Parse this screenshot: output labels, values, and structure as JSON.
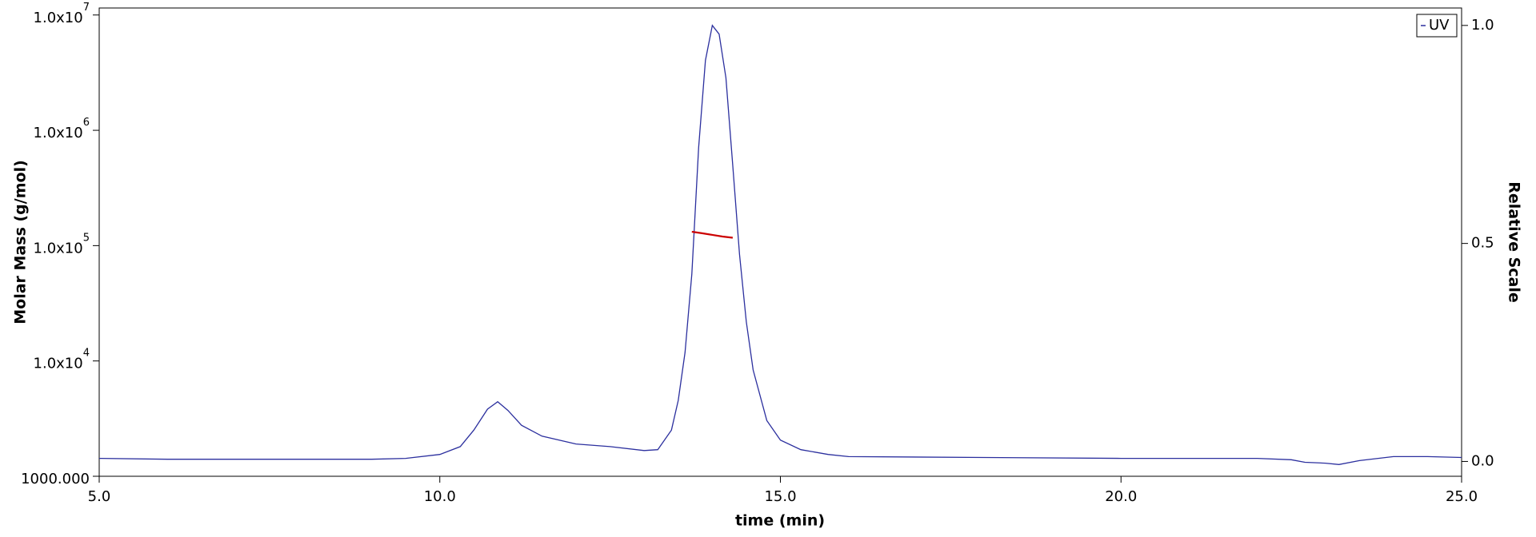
{
  "chart_data": {
    "type": "line",
    "xlabel": "time (min)",
    "ylabel": "Molar Mass (g/mol)",
    "y2label": "Relative Scale",
    "xlim": [
      5,
      25
    ],
    "xticks": [
      {
        "value": 5,
        "label": "5.0"
      },
      {
        "value": 10,
        "label": "10.0"
      },
      {
        "value": 15,
        "label": "15.0"
      },
      {
        "value": 20,
        "label": "20.0"
      },
      {
        "value": 25,
        "label": "25.0"
      }
    ],
    "ylim": [
      1000,
      11500000
    ],
    "yscale": "log",
    "yticks": [
      {
        "value": 1000,
        "label": "1000.000"
      },
      {
        "value": 10000,
        "label": "1.0x10",
        "exponent": "4"
      },
      {
        "value": 100000,
        "label": "1.0x10",
        "exponent": "5"
      },
      {
        "value": 1000000,
        "label": "1.0x10",
        "exponent": "6"
      },
      {
        "value": 10000000,
        "label": "1.0x10",
        "exponent": "7"
      }
    ],
    "y2lim": [
      -0.034,
      1.04
    ],
    "y2ticks": [
      {
        "value": 0,
        "label": "0.0"
      },
      {
        "value": 0.5,
        "label": "0.5"
      },
      {
        "value": 1,
        "label": "1.0"
      }
    ],
    "legend": "upper right",
    "series": [
      {
        "name": "UV",
        "color": "#2b2f9e",
        "axis": "y2",
        "x": [
          5,
          6,
          7,
          8,
          9,
          9.5,
          10,
          10.3,
          10.5,
          10.7,
          10.85,
          11,
          11.2,
          11.5,
          12,
          12.5,
          13,
          13.2,
          13.4,
          13.5,
          13.6,
          13.7,
          13.8,
          13.9,
          14,
          14.1,
          14.2,
          14.3,
          14.4,
          14.5,
          14.6,
          14.8,
          15,
          15.3,
          15.7,
          16,
          18,
          20,
          22,
          22.5,
          22.7,
          23,
          23.2,
          23.5,
          24,
          24.5,
          25
        ],
        "values": [
          0.007,
          0.005,
          0.005,
          0.005,
          0.005,
          0.007,
          0.016,
          0.034,
          0.072,
          0.12,
          0.137,
          0.117,
          0.083,
          0.058,
          0.04,
          0.034,
          0.025,
          0.027,
          0.072,
          0.14,
          0.25,
          0.43,
          0.72,
          0.92,
          1.0,
          0.98,
          0.88,
          0.68,
          0.475,
          0.32,
          0.21,
          0.094,
          0.049,
          0.027,
          0.016,
          0.011,
          0.009,
          0.007,
          0.007,
          0.004,
          -0.002,
          -0.004,
          -0.007,
          0.002,
          0.011,
          0.011,
          0.009
        ]
      },
      {
        "color": "#cc0000",
        "axis": "y",
        "x": [
          13.7,
          13.85,
          14.0,
          14.15,
          14.3
        ],
        "values": [
          132000,
          128000,
          124000,
          120000,
          117000
        ]
      }
    ]
  }
}
